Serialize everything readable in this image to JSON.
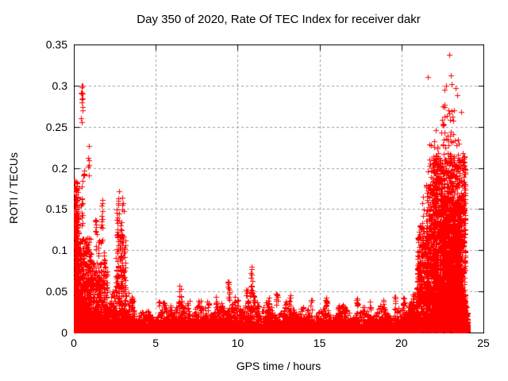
{
  "chart_data": {
    "type": "scatter",
    "title": "Day 350 of 2020, Rate Of TEC Index for receiver dakr",
    "xlabel": "GPS time / hours",
    "ylabel": "ROTI / TECUs",
    "xlim": [
      0,
      25
    ],
    "ylim": [
      0,
      0.35
    ],
    "xtick_values": [
      0,
      5,
      10,
      15,
      20,
      25
    ],
    "xtick_labels": [
      "0",
      "5",
      "10",
      "15",
      "20",
      "25"
    ],
    "ytick_values": [
      0,
      0.05,
      0.1,
      0.15,
      0.2,
      0.25,
      0.3,
      0.35
    ],
    "ytick_labels": [
      "0",
      "0.05",
      "0.1",
      "0.15",
      "0.2",
      "0.25",
      "0.3",
      "0.35"
    ],
    "grid": {
      "on": true,
      "style": "dashed",
      "color": "#9c9c9c"
    },
    "border_color": "#000000",
    "background": "#ffffff",
    "text_color": "#000000",
    "series": [
      {
        "name": "ROTI",
        "marker": "plus",
        "color": "#ff0000",
        "marker_size": 7
      }
    ],
    "data_time_span_hours": [
      0,
      24.05
    ],
    "seed": 7,
    "density_regions": [
      [
        0.0,
        21.3,
        2200,
        0.001,
        0.016,
        2.0
      ],
      [
        21.3,
        24.05,
        260,
        0.001,
        0.014,
        1.5
      ],
      [
        0.0,
        13.6,
        700,
        0.002,
        0.024,
        2.2
      ],
      [
        13.6,
        21.0,
        450,
        0.002,
        0.018,
        2.2
      ],
      [
        0.0,
        0.3,
        300,
        0.003,
        0.185,
        1.5
      ],
      [
        0.05,
        1.05,
        950,
        0.003,
        0.115,
        3.0
      ],
      [
        1.0,
        2.05,
        600,
        0.003,
        0.085,
        3.2
      ],
      [
        2.05,
        2.55,
        240,
        0.003,
        0.055,
        3.0
      ],
      [
        2.55,
        3.15,
        360,
        0.003,
        0.12,
        2.4
      ],
      [
        3.15,
        3.7,
        160,
        0.002,
        0.05,
        3.0
      ],
      [
        3.7,
        5.2,
        380,
        0.002,
        0.03,
        3.0
      ],
      [
        5.2,
        9.2,
        1050,
        0.002,
        0.04,
        3.2
      ],
      [
        9.2,
        10.1,
        260,
        0.002,
        0.045,
        3.0
      ],
      [
        10.1,
        11.3,
        320,
        0.002,
        0.05,
        3.0
      ],
      [
        11.3,
        13.6,
        560,
        0.002,
        0.04,
        3.2
      ],
      [
        13.6,
        20.4,
        1600,
        0.002,
        0.034,
        3.4
      ],
      [
        20.4,
        21.0,
        240,
        0.003,
        0.06,
        2.6
      ],
      [
        20.95,
        21.6,
        380,
        0.004,
        0.13,
        2.2
      ],
      [
        21.5,
        22.15,
        550,
        0.005,
        0.18,
        2.0
      ],
      [
        21.9,
        23.9,
        1900,
        0.008,
        0.215,
        1.9
      ],
      [
        22.3,
        23.65,
        650,
        0.03,
        0.165,
        1.3
      ],
      [
        23.15,
        24.05,
        420,
        0.002,
        0.045,
        2.2
      ]
    ],
    "spikes": [
      [
        0.17,
        0.06,
        0.09,
        0.185,
        22
      ],
      [
        0.5,
        0.05,
        0.255,
        0.3,
        13
      ],
      [
        0.5,
        0.06,
        0.13,
        0.19,
        12
      ],
      [
        0.62,
        0.05,
        0.19,
        0.2,
        5
      ],
      [
        0.9,
        0.04,
        0.19,
        0.227,
        6
      ],
      [
        1.35,
        0.05,
        0.1,
        0.145,
        10
      ],
      [
        1.52,
        0.04,
        0.09,
        0.12,
        8
      ],
      [
        1.7,
        0.05,
        0.1,
        0.165,
        14
      ],
      [
        1.85,
        0.04,
        0.08,
        0.1,
        6
      ],
      [
        2.7,
        0.07,
        0.115,
        0.172,
        18
      ],
      [
        2.9,
        0.05,
        0.09,
        0.14,
        10
      ],
      [
        3.0,
        0.04,
        0.145,
        0.165,
        5
      ],
      [
        5.9,
        0.06,
        0.022,
        0.034,
        8
      ],
      [
        6.5,
        0.07,
        0.03,
        0.058,
        12
      ],
      [
        7.0,
        0.06,
        0.026,
        0.04,
        8
      ],
      [
        8.2,
        0.06,
        0.024,
        0.038,
        8
      ],
      [
        8.7,
        0.05,
        0.028,
        0.044,
        6
      ],
      [
        9.45,
        0.05,
        0.04,
        0.068,
        12
      ],
      [
        10.55,
        0.05,
        0.035,
        0.055,
        8
      ],
      [
        10.85,
        0.04,
        0.045,
        0.086,
        14
      ],
      [
        11.0,
        0.05,
        0.03,
        0.05,
        8
      ],
      [
        11.9,
        0.05,
        0.028,
        0.044,
        6
      ],
      [
        12.4,
        0.05,
        0.032,
        0.05,
        8
      ],
      [
        13.2,
        0.05,
        0.03,
        0.046,
        6
      ],
      [
        14.5,
        0.05,
        0.026,
        0.04,
        6
      ],
      [
        15.4,
        0.05,
        0.028,
        0.044,
        8
      ],
      [
        16.2,
        0.05,
        0.026,
        0.038,
        6
      ],
      [
        17.3,
        0.05,
        0.028,
        0.046,
        8
      ],
      [
        18.1,
        0.05,
        0.024,
        0.038,
        6
      ],
      [
        18.9,
        0.05,
        0.026,
        0.04,
        6
      ],
      [
        19.6,
        0.05,
        0.028,
        0.044,
        8
      ],
      [
        20.15,
        0.05,
        0.03,
        0.048,
        8
      ],
      [
        21.3,
        0.06,
        0.1,
        0.165,
        10
      ],
      [
        21.7,
        0.12,
        0.15,
        0.23,
        14
      ],
      [
        22.1,
        0.15,
        0.17,
        0.25,
        12
      ],
      [
        22.55,
        0.12,
        0.2,
        0.285,
        16
      ],
      [
        22.85,
        0.15,
        0.18,
        0.27,
        18
      ],
      [
        23.1,
        0.15,
        0.17,
        0.28,
        16
      ],
      [
        23.45,
        0.12,
        0.15,
        0.24,
        12
      ],
      [
        23.7,
        0.1,
        0.12,
        0.22,
        8
      ]
    ],
    "outliers": [
      [
        0.5,
        0.298
      ],
      [
        0.52,
        0.29
      ],
      [
        21.6,
        0.31
      ],
      [
        22.62,
        0.295
      ],
      [
        22.72,
        0.3
      ],
      [
        22.9,
        0.337
      ],
      [
        23.0,
        0.312
      ],
      [
        23.05,
        0.302
      ],
      [
        23.3,
        0.297
      ],
      [
        23.38,
        0.288
      ],
      [
        23.65,
        0.268
      ]
    ]
  }
}
